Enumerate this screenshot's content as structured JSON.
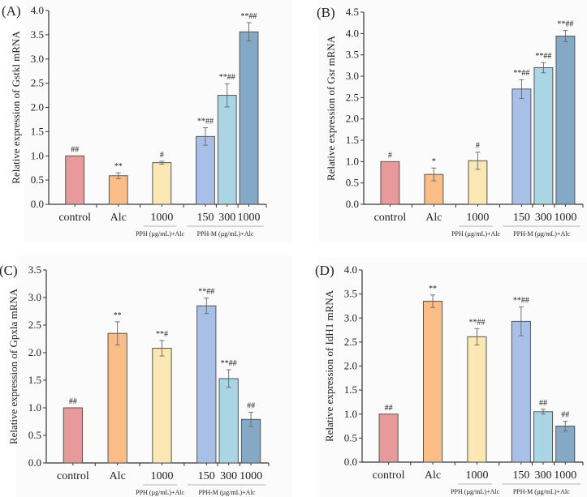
{
  "figure": {
    "group_labels": [
      "control",
      "Alc",
      "1000",
      "150",
      "300",
      "1000"
    ],
    "group_captions": [
      {
        "text": "PPH (µg/mL)+Alc",
        "span": [
          2,
          2
        ]
      },
      {
        "text": "PPH-M (µg/mL)+Alc",
        "span": [
          3,
          5
        ]
      }
    ],
    "bar_colors": [
      "#e89a9a",
      "#fbbd88",
      "#fae7b4",
      "#a8c0e8",
      "#a9d5e4",
      "#84a9c6"
    ]
  },
  "chart_data": [
    {
      "panel_label": "(A)",
      "type": "bar",
      "title": "",
      "xlabel": "",
      "ylabel": "Relative expression of Gstkl mRNA",
      "ylim": [
        0,
        4.0
      ],
      "yticks": [
        "0.0",
        "0.5",
        "1.0",
        "1.5",
        "2.0",
        "2.5",
        "3.0",
        "3.5",
        "4.0"
      ],
      "categories": [
        "control",
        "Alc",
        "PPH 1000",
        "PPH-M 150",
        "PPH-M 300",
        "PPH-M 1000"
      ],
      "values": [
        1.0,
        0.59,
        0.86,
        1.4,
        2.25,
        3.56
      ],
      "errors": [
        0.0,
        0.06,
        0.03,
        0.18,
        0.24,
        0.19
      ],
      "annotations": [
        "##",
        "**",
        "#",
        "**##",
        "**##",
        "**##"
      ]
    },
    {
      "panel_label": "(B)",
      "type": "bar",
      "title": "",
      "xlabel": "",
      "ylabel": "Relative expression of Gsr mRNA",
      "ylim": [
        0,
        4.5
      ],
      "yticks": [
        "0.0",
        "0.5",
        "1.0",
        "1.5",
        "2.0",
        "2.5",
        "3.0",
        "3.5",
        "4.0",
        "4.5"
      ],
      "categories": [
        "control",
        "Alc",
        "PPH 1000",
        "PPH-M 150",
        "PPH-M 300",
        "PPH-M 1000"
      ],
      "values": [
        1.0,
        0.7,
        1.02,
        2.7,
        3.2,
        3.94
      ],
      "errors": [
        0.0,
        0.15,
        0.2,
        0.22,
        0.12,
        0.13
      ],
      "annotations": [
        "#",
        "*",
        "#",
        "**##",
        "**##",
        "**##"
      ]
    },
    {
      "panel_label": "(C)",
      "type": "bar",
      "title": "",
      "xlabel": "",
      "ylabel": "Relative expression of Gpxla mRNA",
      "ylim": [
        0,
        3.5
      ],
      "yticks": [
        "0.0",
        "0.5",
        "1.0",
        "1.5",
        "2.0",
        "2.5",
        "3.0",
        "3.5"
      ],
      "categories": [
        "control",
        "Alc",
        "PPH 1000",
        "PPH-M 150",
        "PPH-M 300",
        "PPH-M 1000"
      ],
      "values": [
        1.0,
        2.35,
        2.08,
        2.85,
        1.53,
        0.79
      ],
      "errors": [
        0.0,
        0.21,
        0.14,
        0.14,
        0.16,
        0.13
      ],
      "annotations": [
        "##",
        "**",
        "**#",
        "**##",
        "**##",
        "##"
      ]
    },
    {
      "panel_label": "(D)",
      "type": "bar",
      "title": "",
      "xlabel": "",
      "ylabel": "Relative expression of IdH1 mRNA",
      "ylim": [
        0,
        4.0
      ],
      "yticks": [
        "0.0",
        "0.5",
        "1.0",
        "1.5",
        "2.0",
        "2.5",
        "3.0",
        "3.5",
        "4.0"
      ],
      "categories": [
        "control",
        "Alc",
        "PPH 1000",
        "PPH-M 150",
        "PPH-M 300",
        "PPH-M 1000"
      ],
      "values": [
        1.0,
        3.35,
        2.61,
        2.93,
        1.05,
        0.75
      ],
      "errors": [
        0.0,
        0.13,
        0.17,
        0.3,
        0.05,
        0.1
      ],
      "annotations": [
        "##",
        "**",
        "**##",
        "**##",
        "##",
        "##"
      ]
    }
  ]
}
